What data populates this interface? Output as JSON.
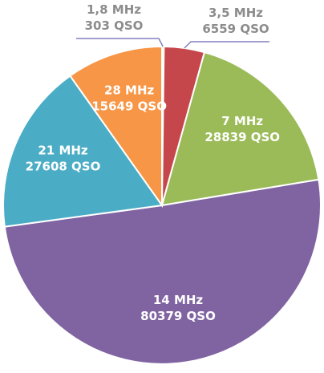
{
  "chart_data": {
    "type": "pie",
    "title": "",
    "unit": "QSO",
    "slices": [
      {
        "band": "1,8 MHz",
        "value": 303,
        "label": "303 QSO",
        "color": "#e8d317",
        "placement": "outside-top"
      },
      {
        "band": "3,5 MHz",
        "value": 6559,
        "label": "6559 QSO",
        "color": "#c5474b",
        "placement": "outside-top-right"
      },
      {
        "band": "7 MHz",
        "value": 28839,
        "label": "28839 QSO",
        "color": "#9bbb59",
        "placement": "inside"
      },
      {
        "band": "14 MHz",
        "value": 80379,
        "label": "80379 QSO",
        "color": "#8064a2",
        "placement": "inside"
      },
      {
        "band": "21 MHz",
        "value": 27608,
        "label": "27608 QSO",
        "color": "#4bacc6",
        "placement": "inside"
      },
      {
        "band": "28 MHz",
        "value": 15649,
        "label": "15649 QSO",
        "color": "#f79646",
        "placement": "inside"
      }
    ],
    "legend": "none",
    "start_angle": "12 o'clock",
    "direction": "clockwise"
  }
}
